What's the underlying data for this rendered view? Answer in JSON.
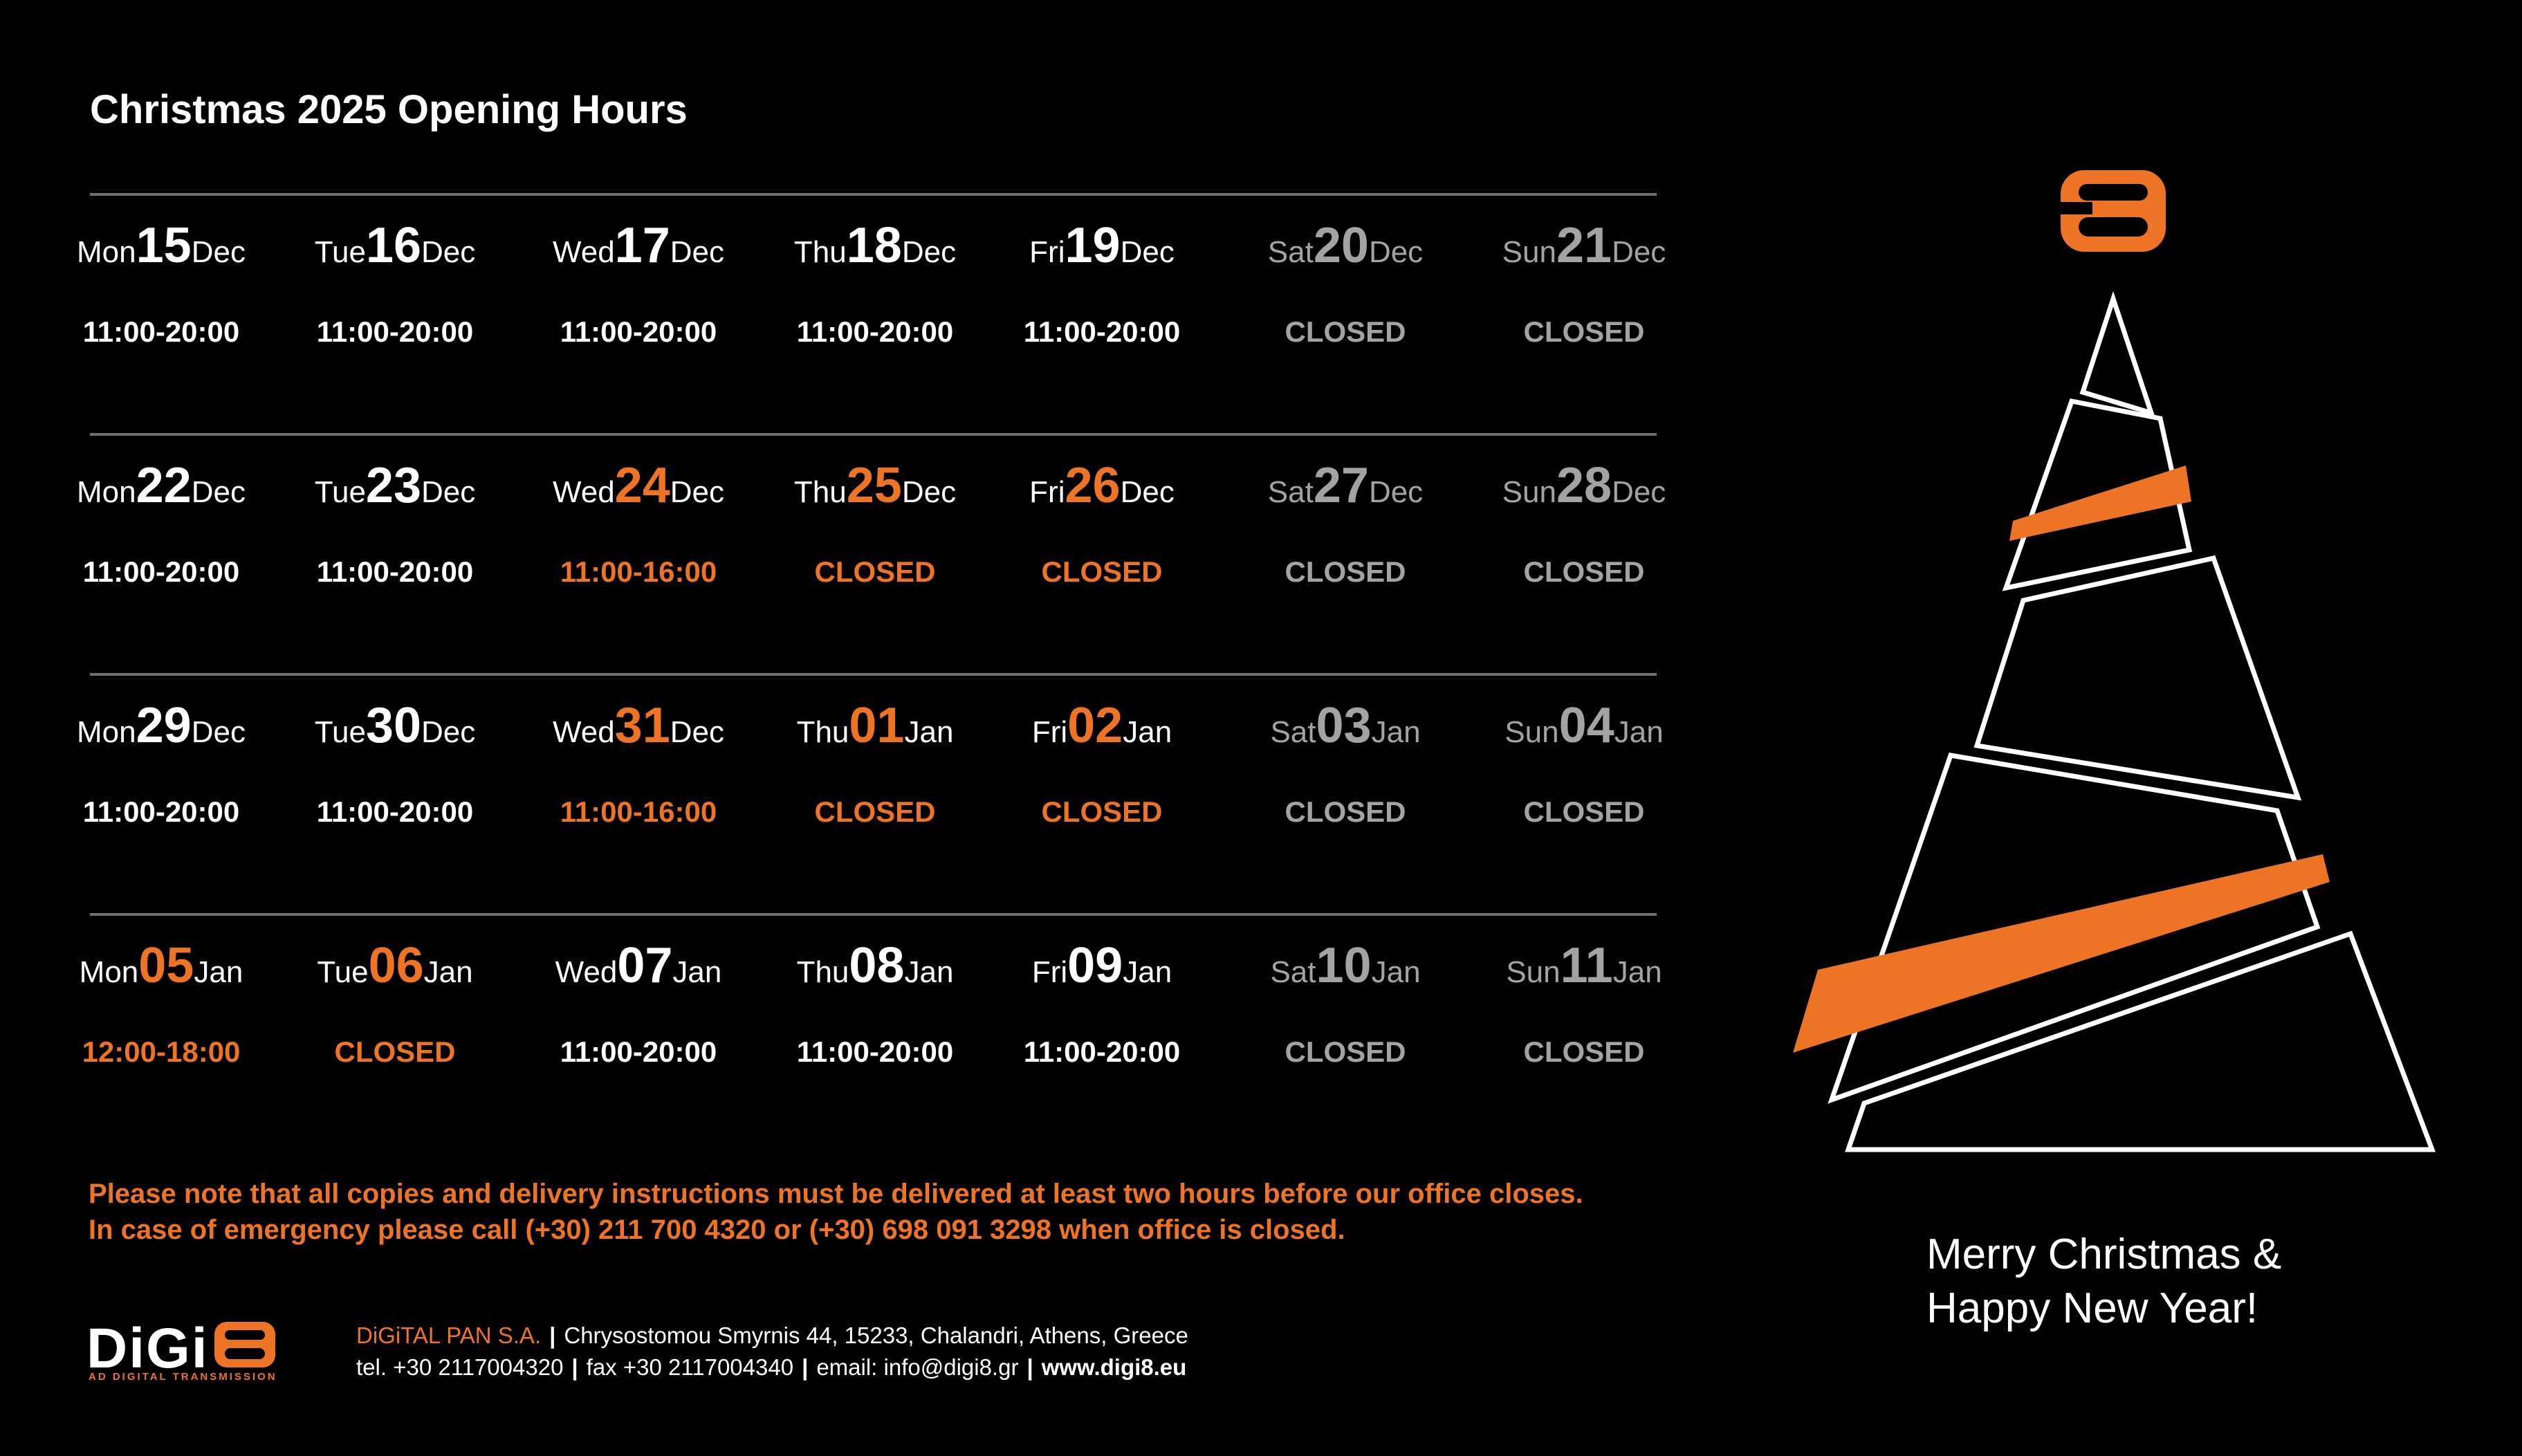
{
  "title": "Christmas 2025 Opening Hours",
  "colors": {
    "accent": "#ee7425",
    "text": "#ffffff",
    "muted": "#a3a3a3",
    "background": "#000000"
  },
  "weeks": [
    {
      "days": [
        {
          "weekday": "Mon",
          "date": "15",
          "month": "Dec",
          "hours": "11:00-20:00",
          "tone": "white"
        },
        {
          "weekday": "Tue",
          "date": "16",
          "month": "Dec",
          "hours": "11:00-20:00",
          "tone": "white"
        },
        {
          "weekday": "Wed",
          "date": "17",
          "month": "Dec",
          "hours": "11:00-20:00",
          "tone": "white"
        },
        {
          "weekday": "Thu",
          "date": "18",
          "month": "Dec",
          "hours": "11:00-20:00",
          "tone": "white"
        },
        {
          "weekday": "Fri",
          "date": "19",
          "month": "Dec",
          "hours": "11:00-20:00",
          "tone": "white"
        },
        {
          "weekday": "Sat",
          "date": "20",
          "month": "Dec",
          "hours": "CLOSED",
          "tone": "gray"
        },
        {
          "weekday": "Sun",
          "date": "21",
          "month": "Dec",
          "hours": "CLOSED",
          "tone": "gray"
        }
      ]
    },
    {
      "days": [
        {
          "weekday": "Mon",
          "date": "22",
          "month": "Dec",
          "hours": "11:00-20:00",
          "tone": "white"
        },
        {
          "weekday": "Tue",
          "date": "23",
          "month": "Dec",
          "hours": "11:00-20:00",
          "tone": "white"
        },
        {
          "weekday": "Wed",
          "date": "24",
          "month": "Dec",
          "hours": "11:00-16:00",
          "tone": "orange"
        },
        {
          "weekday": "Thu",
          "date": "25",
          "month": "Dec",
          "hours": "CLOSED",
          "tone": "orange"
        },
        {
          "weekday": "Fri",
          "date": "26",
          "month": "Dec",
          "hours": "CLOSED",
          "tone": "orange"
        },
        {
          "weekday": "Sat",
          "date": "27",
          "month": "Dec",
          "hours": "CLOSED",
          "tone": "gray"
        },
        {
          "weekday": "Sun",
          "date": "28",
          "month": "Dec",
          "hours": "CLOSED",
          "tone": "gray"
        }
      ]
    },
    {
      "days": [
        {
          "weekday": "Mon",
          "date": "29",
          "month": "Dec",
          "hours": "11:00-20:00",
          "tone": "white"
        },
        {
          "weekday": "Tue",
          "date": "30",
          "month": "Dec",
          "hours": "11:00-20:00",
          "tone": "white"
        },
        {
          "weekday": "Wed",
          "date": "31",
          "month": "Dec",
          "hours": "11:00-16:00",
          "tone": "orange"
        },
        {
          "weekday": "Thu",
          "date": "01",
          "month": "Jan",
          "hours": "CLOSED",
          "tone": "orange"
        },
        {
          "weekday": "Fri",
          "date": "02",
          "month": "Jan",
          "hours": "CLOSED",
          "tone": "orange"
        },
        {
          "weekday": "Sat",
          "date": "03",
          "month": "Jan",
          "hours": "CLOSED",
          "tone": "gray"
        },
        {
          "weekday": "Sun",
          "date": "04",
          "month": "Jan",
          "hours": "CLOSED",
          "tone": "gray"
        }
      ]
    },
    {
      "days": [
        {
          "weekday": "Mon",
          "date": "05",
          "month": "Jan",
          "hours": "12:00-18:00",
          "tone": "orange"
        },
        {
          "weekday": "Tue",
          "date": "06",
          "month": "Jan",
          "hours": "CLOSED",
          "tone": "orange"
        },
        {
          "weekday": "Wed",
          "date": "07",
          "month": "Jan",
          "hours": "11:00-20:00",
          "tone": "white"
        },
        {
          "weekday": "Thu",
          "date": "08",
          "month": "Jan",
          "hours": "11:00-20:00",
          "tone": "white"
        },
        {
          "weekday": "Fri",
          "date": "09",
          "month": "Jan",
          "hours": "11:00-20:00",
          "tone": "white"
        },
        {
          "weekday": "Sat",
          "date": "10",
          "month": "Jan",
          "hours": "CLOSED",
          "tone": "gray"
        },
        {
          "weekday": "Sun",
          "date": "11",
          "month": "Jan",
          "hours": "CLOSED",
          "tone": "gray"
        }
      ]
    }
  ],
  "note": {
    "line1": "Please note that all copies and delivery instructions must be delivered at least two hours before our office closes.",
    "line2": "In case of emergency please call (+30) 211 700 4320 or (+30) 698 091 3298 when office is closed."
  },
  "footer": {
    "logo_text": "DiGi8",
    "logo_tagline": "AD DIGITAL TRANSMISSION",
    "company_name": "DiGiTAL PAN S.A.",
    "address": "Chrysostomou Smyrnis 44, 15233, Chalandri, Athens, Greece",
    "tel": "tel. +30 2117004320",
    "fax": "fax +30 2117004340",
    "email": "email: info@digi8.gr",
    "website": "www.digi8.eu"
  },
  "greeting": {
    "line1": "Merry Christmas &",
    "line2": "Happy New Year!"
  },
  "icons": {
    "brand_mark": "digi8-eight-logo-icon",
    "tree": "christmas-tree-icon"
  }
}
